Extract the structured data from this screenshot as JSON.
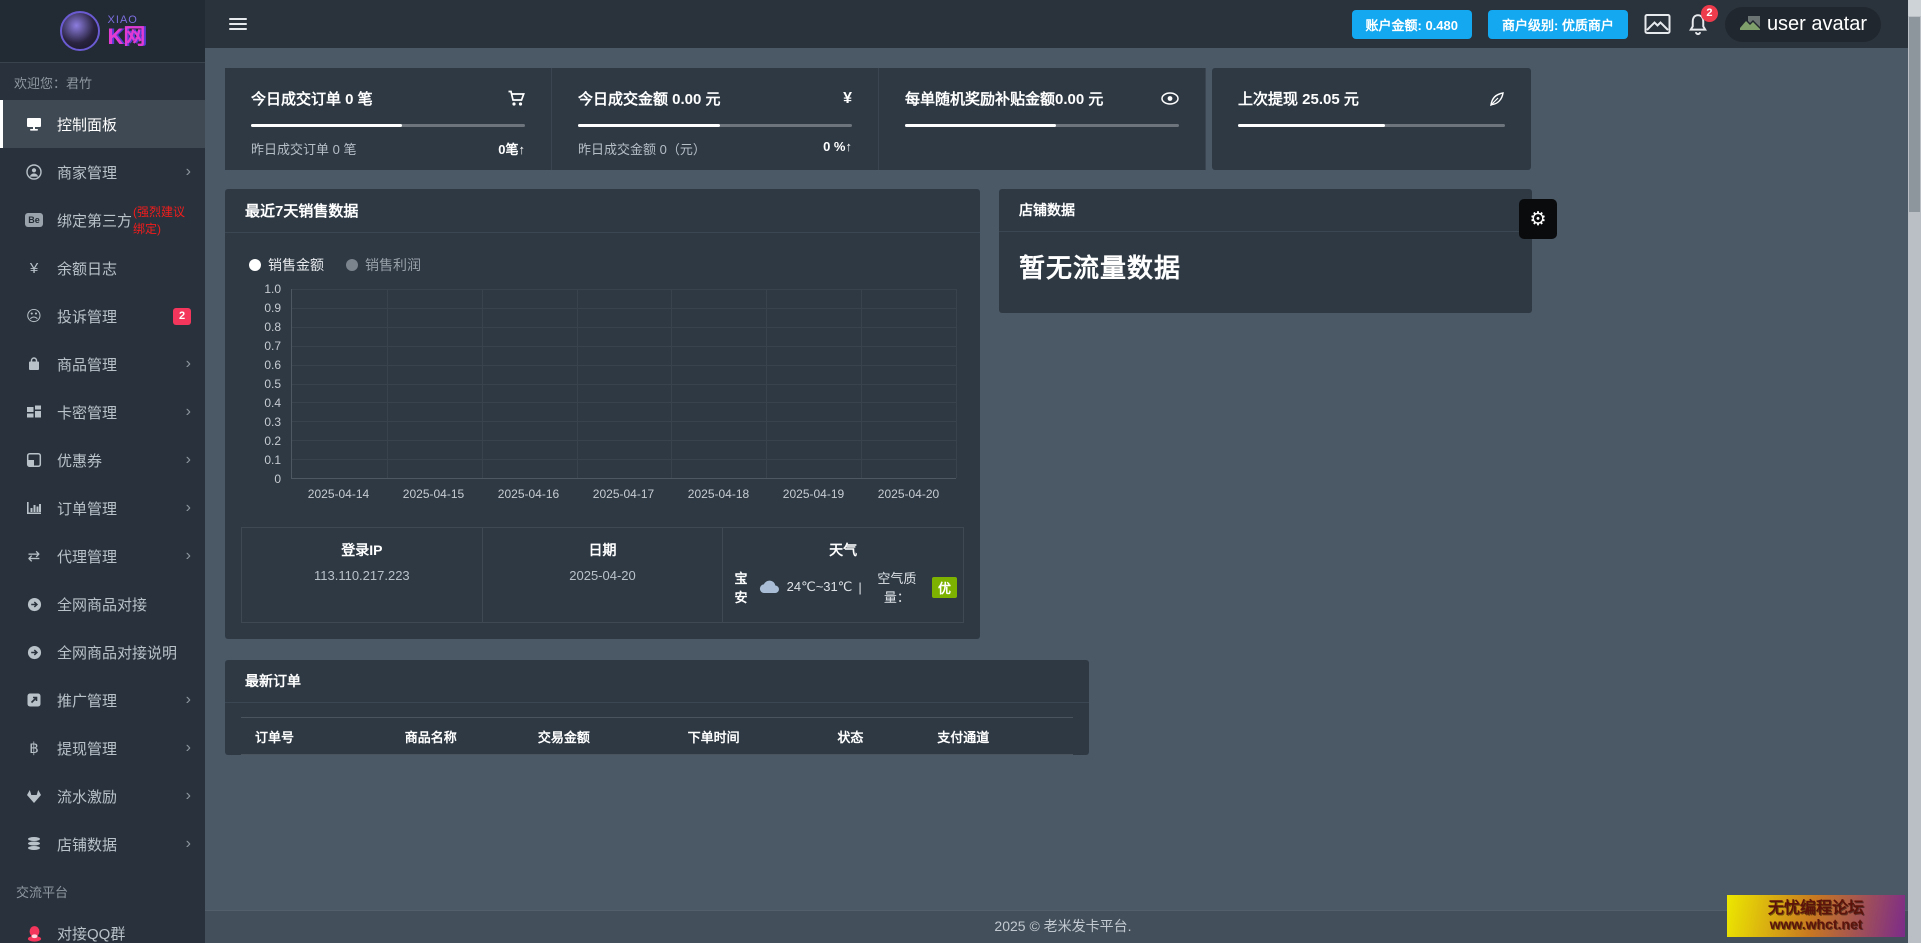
{
  "colors": {
    "accent_blue": "#13a8f0",
    "badge_red": "#f5365c",
    "aqi_green": "#7db300"
  },
  "sidebar": {
    "logo": {
      "line1": "XIAO",
      "line2": "K网"
    },
    "welcome": "欢迎您：君竹",
    "items": [
      {
        "label": "控制面板"
      },
      {
        "label": "商家管理"
      },
      {
        "label": "绑定第三方",
        "note": "(强烈建议绑定)",
        "icon_text": "Be"
      },
      {
        "label": "余额日志",
        "icon_text": "¥"
      },
      {
        "label": "投诉管理",
        "badge": "2",
        "icon_text": "☹"
      },
      {
        "label": "商品管理"
      },
      {
        "label": "卡密管理"
      },
      {
        "label": "优惠券"
      },
      {
        "label": "订单管理"
      },
      {
        "label": "代理管理",
        "icon_text": "⇄"
      },
      {
        "label": "全网商品对接"
      },
      {
        "label": "全网商品对接说明"
      },
      {
        "label": "推广管理"
      },
      {
        "label": "提现管理",
        "icon_text": "฿"
      },
      {
        "label": "流水激励"
      },
      {
        "label": "店铺数据"
      }
    ],
    "section_label": "交流平台",
    "qq_item": {
      "label": "对接QQ群"
    }
  },
  "topbar": {
    "balance_button": "账户金额: 0.480",
    "level_button": "商户级别: 优质商户",
    "notification_count": "2",
    "avatar_alt": "user avatar"
  },
  "stats": {
    "cards": [
      {
        "title": "今日成交订单 0 笔",
        "sub": "昨日成交订单 0 笔",
        "sub_value": "0笔↑",
        "progress": 55
      },
      {
        "title": "今日成交金额 0.00 元",
        "icon_text": "¥",
        "sub": "昨日成交金额 0（元）",
        "sub_value": "0 %↑",
        "progress": 52
      },
      {
        "title": "每单随机奖励补贴金额0.00 元",
        "progress": 55
      },
      {
        "title": "上次提现 25.05 元",
        "progress": 55
      }
    ]
  },
  "chart_card": {
    "title": "最近7天销售数据"
  },
  "chart_data": {
    "type": "line",
    "title": "最近7天销售数据",
    "categories": [
      "2025-04-14",
      "2025-04-15",
      "2025-04-16",
      "2025-04-17",
      "2025-04-18",
      "2025-04-19",
      "2025-04-20"
    ],
    "series": [
      {
        "name": "销售金额",
        "values": [
          0,
          0,
          0,
          0,
          0,
          0,
          0
        ],
        "color": "#ffffff",
        "active": true
      },
      {
        "name": "销售利润",
        "values": [
          0,
          0,
          0,
          0,
          0,
          0,
          0
        ],
        "color": "#7b838d",
        "active": false
      }
    ],
    "ylim": [
      0,
      1
    ],
    "yticks": [
      "1.0",
      "0.9",
      "0.8",
      "0.7",
      "0.6",
      "0.5",
      "0.4",
      "0.3",
      "0.2",
      "0.1",
      "0"
    ],
    "grid": true,
    "legend_position": "top-left",
    "xlabel": "",
    "ylabel": ""
  },
  "info_row": [
    {
      "title": "登录IP",
      "value": "113.110.217.223"
    },
    {
      "title": "日期",
      "value": "2025-04-20"
    },
    {
      "title": "天气",
      "city": "宝安",
      "temp": "24℃~31℃",
      "sep": "|",
      "aqi_label": "空气质量：",
      "aqi_value": "优"
    }
  ],
  "shop_card": {
    "title": "店铺数据",
    "empty_text": "暂无流量数据",
    "gear_icon_text": "⚙"
  },
  "orders": {
    "title": "最新订单",
    "columns": [
      "订单号",
      "商品名称",
      "交易金额",
      "下单时间",
      "状态",
      "支付通道"
    ],
    "rows": []
  },
  "footer": {
    "text": "2025 © 老米发卡平台."
  },
  "watermark": {
    "line1": "无忧编程论坛",
    "line2": "www.whct.net"
  }
}
